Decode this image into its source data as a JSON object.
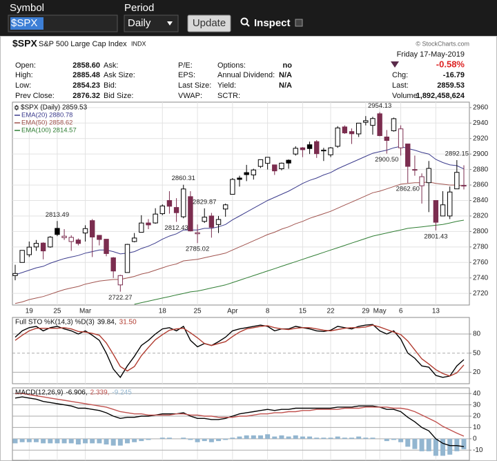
{
  "toolbar": {
    "symbol_label": "Symbol",
    "period_label": "Period",
    "symbol": "$SPX",
    "period": "Daily",
    "update": "Update",
    "inspect": "Inspect"
  },
  "header": {
    "symbol": "$SPX",
    "name": "S&P 500 Large Cap Index",
    "exchange": "INDX",
    "source": "© StockCharts.com",
    "date": "Friday  17-May-2019",
    "change_pct": "-0.58%"
  },
  "quote": [
    [
      [
        "Open:",
        "2858.60"
      ],
      [
        "Ask:"
      ],
      [
        "P/E:"
      ],
      [
        "Options:",
        "no"
      ]
    ],
    [
      [
        "High:",
        "2885.48"
      ],
      [
        "Ask Size:"
      ],
      [
        "EPS:"
      ],
      [
        "Annual Dividend:",
        "N/A"
      ]
    ],
    [
      [
        "Low:",
        "2854.23"
      ],
      [
        "Bid:"
      ],
      [
        "Last Size:"
      ],
      [
        "Yield:",
        "N/A"
      ]
    ],
    [
      [
        "Prev Close:",
        "2876.32"
      ],
      [
        "Bid Size:"
      ],
      [
        "VWAP:"
      ],
      [
        "SCTR:"
      ]
    ]
  ],
  "quote_summary": [
    [
      "Chg:",
      "-16.79"
    ],
    [
      "Last:",
      "2859.53"
    ],
    [
      "Volume:",
      "1,892,458,624"
    ]
  ],
  "chart_data": [
    {
      "type": "candlestick",
      "name": "$SPX (Daily) 2859.53",
      "categories": [
        null,
        null,
        "19",
        null,
        null,
        null,
        "25",
        null,
        null,
        null,
        "Mar",
        null,
        null,
        null,
        null,
        null,
        null,
        null,
        null,
        null,
        null,
        "18",
        null,
        null,
        null,
        null,
        "25",
        null,
        null,
        null,
        null,
        "Apr",
        null,
        null,
        null,
        null,
        "8",
        null,
        null,
        null,
        null,
        "15",
        null,
        null,
        null,
        "22",
        null,
        null,
        null,
        null,
        "29",
        null,
        "May",
        null,
        null,
        "6",
        null,
        null,
        null,
        null,
        "13",
        null,
        null,
        null,
        null
      ],
      "open": [
        2743,
        2760,
        2770,
        2780,
        2785,
        2780,
        2804,
        2792,
        2787,
        2789,
        2798,
        2814,
        2795,
        2790,
        2766,
        2731,
        2747,
        2787,
        2799,
        2811,
        2811,
        2823,
        2840,
        2831,
        2819,
        2845,
        2797,
        2813,
        2820,
        2809,
        2829,
        2848,
        2869,
        2876,
        2873,
        2884,
        2888,
        2886,
        2881,
        2892,
        2900,
        2908,
        2912,
        2916,
        2904,
        2899,
        2910,
        2935,
        2929,
        2926,
        2941,
        2937,
        2952,
        2922,
        2930,
        2908,
        2913,
        2880,
        2859,
        2863,
        2840,
        2820,
        2820,
        2855,
        2858.6
      ],
      "high": [
        2757,
        2775.66,
        2787,
        2789,
        2786,
        2794,
        2813.49,
        2803,
        2795,
        2791,
        2808,
        2816,
        2795,
        2790,
        2767,
        2744,
        2784,
        2798,
        2821,
        2816,
        2830,
        2835,
        2852,
        2843,
        2860.31,
        2852,
        2809,
        2829.87,
        2824,
        2820,
        2836,
        2869,
        2872,
        2886,
        2881,
        2893,
        2895.95,
        2886,
        2889,
        2893,
        2910,
        2909,
        2916,
        2918,
        2908,
        2909,
        2936,
        2937,
        2933,
        2940,
        2949,
        2948,
        2954.13,
        2931,
        2947,
        2937,
        2913,
        2898,
        2875,
        2891,
        2840,
        2852,
        2858,
        2892.15,
        2885.48
      ],
      "low": [
        2737,
        2760,
        2767,
        2775,
        2764,
        2779,
        2794,
        2789,
        2775,
        2782,
        2787,
        2767,
        2782,
        2768,
        2740,
        2722.27,
        2747,
        2786,
        2799,
        2803,
        2810,
        2821,
        2823,
        2812.43,
        2817,
        2800,
        2785.02,
        2811,
        2792,
        2798,
        2819,
        2848,
        2858,
        2865,
        2867,
        2882,
        2880,
        2873,
        2879,
        2881,
        2898,
        2896,
        2900,
        2895,
        2891,
        2896,
        2908,
        2926,
        2913,
        2922,
        2937,
        2925,
        2923,
        2900.5,
        2929,
        2898,
        2862.6,
        2872,
        2836,
        2825,
        2801.43,
        2820,
        2816,
        2855,
        2854.23
      ],
      "close": [
        2745.73,
        2775.6,
        2779.76,
        2784.7,
        2774.88,
        2792.67,
        2796.11,
        2793.9,
        2792.38,
        2784.49,
        2803.69,
        2792.81,
        2789.65,
        2771.45,
        2748.93,
        2743.07,
        2783.3,
        2791.52,
        2810.92,
        2808.48,
        2822.48,
        2832.94,
        2832.57,
        2824.23,
        2854.88,
        2800.71,
        2798.36,
        2818.46,
        2805.37,
        2815.44,
        2834.4,
        2867.19,
        2867.24,
        2873.4,
        2879.39,
        2892.74,
        2895.77,
        2878.2,
        2888.21,
        2888.32,
        2907.41,
        2905.58,
        2907.06,
        2900.45,
        2905.03,
        2907.97,
        2933.68,
        2927.25,
        2926.17,
        2939.88,
        2943.03,
        2945.83,
        2923.73,
        2917.52,
        2945.64,
        2932.47,
        2884.05,
        2879.42,
        2870.72,
        2881.4,
        2811.87,
        2834.41,
        2850.96,
        2876.32,
        2859.53
      ],
      "up_color": "#000000",
      "down_color": "#7b2d4f",
      "series": [
        {
          "name": "EMA(20) 2880.78",
          "color": "#3a3a8c",
          "values": [
            2744,
            2747,
            2750,
            2753,
            2755,
            2759,
            2762,
            2765,
            2767,
            2769,
            2772,
            2774,
            2776,
            2776,
            2774,
            2771,
            2772,
            2774,
            2778,
            2781,
            2785,
            2790,
            2794,
            2797,
            2802,
            2802,
            2802,
            2804,
            2804,
            2806,
            2809,
            2815,
            2820,
            2825,
            2830,
            2835,
            2840,
            2844,
            2848,
            2852,
            2857,
            2862,
            2866,
            2869,
            2873,
            2876,
            2881,
            2885,
            2889,
            2893,
            2897,
            2901,
            2903,
            2905,
            2908,
            2910,
            2907,
            2905,
            2902,
            2900,
            2893,
            2889,
            2886,
            2885,
            2880.78
          ]
        },
        {
          "name": "EMA(50) 2858.62",
          "color": "#a0524d",
          "values": [
            2707,
            2709,
            2712,
            2714,
            2716,
            2719,
            2722,
            2725,
            2727,
            2729,
            2732,
            2734,
            2736,
            2737,
            2738,
            2738,
            2740,
            2742,
            2745,
            2747,
            2750,
            2753,
            2756,
            2758,
            2762,
            2763,
            2764,
            2766,
            2768,
            2770,
            2772,
            2776,
            2780,
            2784,
            2788,
            2792,
            2796,
            2799,
            2803,
            2806,
            2810,
            2813,
            2817,
            2820,
            2823,
            2826,
            2830,
            2834,
            2838,
            2842,
            2846,
            2850,
            2852,
            2855,
            2858,
            2861,
            2862,
            2863,
            2863,
            2864,
            2862,
            2861,
            2860,
            2860,
            2858.62
          ]
        },
        {
          "name": "EMA(100) 2814.57",
          "color": "#2e7d32",
          "values": [
            null,
            null,
            null,
            null,
            null,
            null,
            null,
            null,
            null,
            null,
            null,
            null,
            null,
            null,
            null,
            null,
            null,
            2706,
            2708,
            2710,
            2712,
            2714,
            2716,
            2718,
            2720,
            2722,
            2723,
            2725,
            2727,
            2729,
            2731,
            2734,
            2737,
            2740,
            2743,
            2746,
            2749,
            2752,
            2755,
            2758,
            2761,
            2764,
            2767,
            2770,
            2773,
            2776,
            2779,
            2782,
            2785,
            2788,
            2791,
            2794,
            2796,
            2798,
            2800,
            2802,
            2804,
            2805,
            2806,
            2807,
            2808,
            2809,
            2811,
            2813,
            2814.57
          ]
        }
      ],
      "annotations": [
        {
          "value": 2813.49,
          "label": "2813.49"
        },
        {
          "value": 2722.27,
          "label": "2722.27"
        },
        {
          "value": 2860.31,
          "label": "2860.31"
        },
        {
          "value": 2812.43,
          "label": "2812.43"
        },
        {
          "value": 2829.87,
          "label": "2829.87"
        },
        {
          "value": 2785.02,
          "label": "2785.02"
        },
        {
          "value": 2954.13,
          "label": "2954.13"
        },
        {
          "value": 2900.5,
          "label": "2900.50"
        },
        {
          "value": 2862.6,
          "label": "2862.60"
        },
        {
          "value": 2801.43,
          "label": "2801.43"
        },
        {
          "value": 2892.15,
          "label": "2892.15"
        }
      ],
      "ylim": [
        2705,
        2967
      ],
      "yticks": [
        2720,
        2740,
        2760,
        2780,
        2800,
        2820,
        2840,
        2860,
        2880,
        2900,
        2920,
        2940,
        2960
      ],
      "grid": true
    },
    {
      "type": "line",
      "title": "Full STO %K(14,3) %D(3)",
      "legend_values": [
        {
          "value": 39.84,
          "label": "39.84,"
        },
        {
          "value": 31.5,
          "label": "31.50"
        }
      ],
      "series": [
        {
          "color": "#000000",
          "values": [
            75,
            85,
            90,
            92,
            85,
            90,
            92,
            88,
            85,
            80,
            85,
            78,
            70,
            50,
            25,
            12,
            30,
            45,
            62,
            70,
            80,
            88,
            90,
            85,
            92,
            70,
            60,
            65,
            62,
            68,
            75,
            85,
            88,
            90,
            92,
            94,
            92,
            85,
            88,
            88,
            92,
            90,
            88,
            85,
            84,
            86,
            92,
            90,
            88,
            92,
            94,
            95,
            85,
            80,
            85,
            72,
            50,
            42,
            30,
            28,
            15,
            12,
            14,
            30,
            39.84
          ]
        },
        {
          "color": "#b03a2e",
          "values": [
            70,
            78,
            85,
            89,
            89,
            89,
            89,
            90,
            88,
            84,
            83,
            81,
            78,
            66,
            48,
            29,
            22,
            29,
            46,
            59,
            71,
            79,
            86,
            88,
            89,
            82,
            74,
            65,
            62,
            65,
            68,
            76,
            83,
            88,
            90,
            92,
            93,
            90,
            88,
            87,
            89,
            90,
            90,
            88,
            86,
            85,
            87,
            89,
            90,
            90,
            91,
            94,
            91,
            87,
            83,
            79,
            69,
            55,
            41,
            33,
            24,
            18,
            14,
            19,
            31.5
          ]
        }
      ],
      "ylim": [
        2,
        106
      ],
      "yticks": [
        20,
        50,
        80
      ],
      "grid": true
    },
    {
      "type": "macd",
      "title": "MACD(12,26,9)",
      "legend_values": [
        {
          "value": -6.906,
          "label": "-6.906,"
        },
        {
          "value": 2.339,
          "label": "2.339,"
        },
        {
          "value": -9.245,
          "label": "-9.245"
        }
      ],
      "series": [
        {
          "color": "#000000",
          "values": [
            36,
            37,
            36,
            35,
            33,
            32,
            31,
            30,
            29,
            27,
            27,
            26,
            25,
            23,
            20,
            18,
            19,
            19,
            20,
            20,
            21,
            22,
            22,
            22,
            23,
            20,
            18,
            18,
            17,
            17,
            18,
            20,
            22,
            23,
            24,
            25,
            26,
            25,
            26,
            26,
            27,
            27,
            27,
            27,
            27,
            27,
            28,
            28,
            28,
            29,
            29,
            29,
            28,
            26,
            26,
            24,
            19,
            15,
            10,
            7,
            0,
            -4,
            -6,
            -6,
            -6.906
          ]
        },
        {
          "color": "#c0504d",
          "values": [
            40,
            40,
            39,
            38,
            37,
            36,
            35,
            34,
            33,
            32,
            31,
            30,
            29,
            28,
            26,
            24,
            23,
            22,
            22,
            21,
            21,
            21,
            21,
            22,
            22,
            21,
            21,
            20,
            20,
            19,
            19,
            19,
            20,
            20,
            21,
            22,
            22,
            23,
            23,
            24,
            24,
            25,
            25,
            26,
            26,
            26,
            26,
            27,
            27,
            27,
            28,
            28,
            28,
            28,
            27,
            27,
            26,
            24,
            21,
            18,
            15,
            11,
            8,
            5,
            2.339
          ]
        },
        {
          "color": "#93b6d0",
          "bars": true,
          "values": [
            -4,
            -3,
            -3,
            -3,
            -4,
            -4,
            -4,
            -4,
            -4,
            -5,
            -4,
            -4,
            -4,
            -5,
            -6,
            -6,
            -4,
            -3,
            -2,
            -1,
            0,
            1,
            1,
            0,
            1,
            -1,
            -3,
            -2,
            -3,
            -2,
            -1,
            1,
            2,
            3,
            3,
            3,
            4,
            2,
            3,
            2,
            3,
            2,
            2,
            1,
            1,
            1,
            2,
            1,
            1,
            2,
            1,
            1,
            0,
            -2,
            -1,
            -3,
            -7,
            -9,
            -11,
            -11,
            -15,
            -15,
            -14,
            -11,
            -9.245
          ]
        }
      ],
      "ylim": [
        -19,
        45
      ],
      "yticks": [
        -10,
        0,
        10,
        20,
        30,
        40
      ],
      "grid": true
    }
  ]
}
